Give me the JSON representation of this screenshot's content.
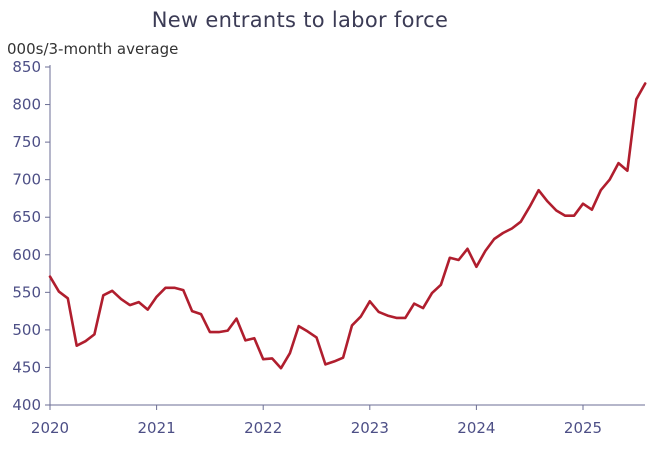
{
  "chart_data": {
    "type": "line",
    "title": "New entrants to labor force",
    "ylabel": "000s/3-month average",
    "xlabel": "",
    "ylim": [
      400,
      850
    ],
    "xlim": [
      2020.0,
      2025.58
    ],
    "yticks": [
      400,
      450,
      500,
      550,
      600,
      650,
      700,
      750,
      800,
      850
    ],
    "xticks": [
      "2020",
      "2021",
      "2022",
      "2023",
      "2024",
      "2025"
    ],
    "grid": false,
    "line_color": "#b01e2e",
    "axis_text_color": "#4d4f86",
    "series": [
      {
        "x": [
          "2020-01",
          "2020-02",
          "2020-03",
          "2020-04",
          "2020-05",
          "2020-06",
          "2020-07",
          "2020-08",
          "2020-09",
          "2020-10",
          "2020-11",
          "2020-12",
          "2021-01",
          "2021-02",
          "2021-03",
          "2021-04",
          "2021-05",
          "2021-06",
          "2021-07",
          "2021-08",
          "2021-09",
          "2021-10",
          "2021-11",
          "2021-12",
          "2022-01",
          "2022-02",
          "2022-03",
          "2022-04",
          "2022-05",
          "2022-06",
          "2022-07",
          "2022-08",
          "2022-09",
          "2022-10",
          "2022-11",
          "2022-12",
          "2023-01",
          "2023-02",
          "2023-03",
          "2023-04",
          "2023-05",
          "2023-06",
          "2023-07",
          "2023-08",
          "2023-09",
          "2023-10",
          "2023-11",
          "2023-12",
          "2024-01",
          "2024-02",
          "2024-03",
          "2024-04",
          "2024-05",
          "2024-06",
          "2024-07",
          "2024-08",
          "2024-09",
          "2024-10",
          "2024-11",
          "2024-12",
          "2025-01",
          "2025-02",
          "2025-03",
          "2025-04",
          "2025-05",
          "2025-06",
          "2025-07",
          "2025-08"
        ],
        "values": [
          571,
          551,
          542,
          479,
          485,
          494,
          546,
          552,
          541,
          533,
          537,
          527,
          544,
          556,
          556,
          553,
          525,
          521,
          497,
          497,
          499,
          515,
          486,
          489,
          461,
          462,
          449,
          469,
          505,
          498,
          490,
          454,
          458,
          463,
          506,
          518,
          538,
          524,
          519,
          516,
          516,
          535,
          529,
          549,
          560,
          596,
          593,
          608,
          584,
          605,
          621,
          629,
          635,
          644,
          664,
          686,
          671,
          659,
          652,
          652,
          668,
          660,
          686,
          700,
          722,
          712,
          807,
          828
        ]
      }
    ]
  }
}
